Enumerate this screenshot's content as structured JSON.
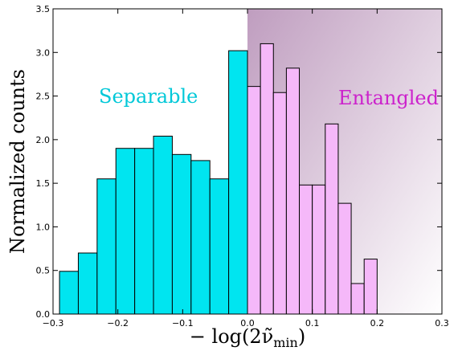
{
  "chart_data": {
    "type": "bar",
    "xlabel": "− log(2ν̃",
    "xlabel_sub": "min",
    "xlabel_close": ")",
    "ylabel": "Normalized counts",
    "xlim": [
      -0.3,
      0.3
    ],
    "ylim": [
      0,
      3.5
    ],
    "x_ticks": [
      -0.3,
      -0.2,
      -0.1,
      0.0,
      0.1,
      0.2,
      0.3
    ],
    "x_tick_labels": [
      "−0.3",
      "−0.2",
      "−0.1",
      "0.0",
      "0.1",
      "0.2",
      "0.3"
    ],
    "y_ticks": [
      0,
      0.5,
      1.0,
      1.5,
      2.0,
      2.5,
      3.0,
      3.5
    ],
    "y_tick_labels": [
      "0.0",
      "0.5",
      "1.0",
      "1.5",
      "2.0",
      "2.5",
      "3.0",
      "3.5"
    ],
    "bin_width": 0.02,
    "colors": {
      "separable": "#00e5f0",
      "entangled": "#f5b8f9",
      "separable_text": "#00c8d8",
      "entangled_text": "#cc22cc",
      "shade": "#b48cb4",
      "edge": "#000000"
    },
    "series": [
      {
        "name": "Separable",
        "bins": [
          {
            "x0": -0.29,
            "value": 0.49
          },
          {
            "x0": -0.27,
            "value": 0.7
          },
          {
            "x0": -0.25,
            "value": 1.55
          },
          {
            "x0": -0.23,
            "value": 1.9
          },
          {
            "x0": -0.21,
            "value": 1.9
          },
          {
            "x0": -0.19,
            "value": 2.04
          },
          {
            "x0": -0.17,
            "value": 1.83
          },
          {
            "x0": -0.15,
            "value": 1.76
          },
          {
            "x0": -0.13,
            "value": 1.55
          },
          {
            "x0": -0.11,
            "value": 3.02
          }
        ]
      },
      {
        "name": "Entangled",
        "bins": [
          {
            "x0": 0.0,
            "value": 2.61
          },
          {
            "x0": 0.02,
            "value": 3.1
          },
          {
            "x0": 0.04,
            "value": 2.54
          },
          {
            "x0": 0.06,
            "value": 2.82
          },
          {
            "x0": 0.08,
            "value": 1.48
          },
          {
            "x0": 0.1,
            "value": 1.48
          },
          {
            "x0": 0.12,
            "value": 2.18
          },
          {
            "x0": 0.14,
            "value": 1.27
          },
          {
            "x0": 0.16,
            "value": 0.35
          },
          {
            "x0": 0.18,
            "value": 0.63
          }
        ]
      }
    ],
    "annotations": [
      {
        "text": "Separable",
        "key": "separable"
      },
      {
        "text": "Entangled",
        "key": "entangled"
      }
    ]
  }
}
